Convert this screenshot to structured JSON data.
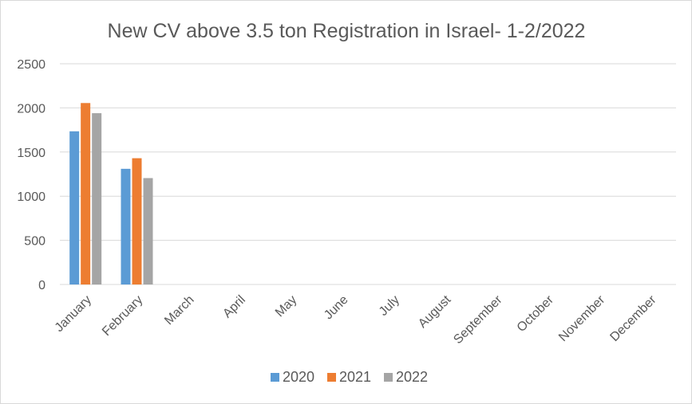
{
  "chart_data": {
    "type": "bar",
    "title": "New CV above 3.5 ton Registration in Israel- 1-2/2022",
    "xlabel": "",
    "ylabel": "",
    "categories": [
      "January",
      "February",
      "March",
      "April",
      "May",
      "June",
      "July",
      "August",
      "September",
      "October",
      "November",
      "December"
    ],
    "series": [
      {
        "name": "2020",
        "color": "#5b9bd5",
        "values": [
          1735,
          1310,
          null,
          null,
          null,
          null,
          null,
          null,
          null,
          null,
          null,
          null
        ]
      },
      {
        "name": "2021",
        "color": "#ed7d31",
        "values": [
          2055,
          1430,
          null,
          null,
          null,
          null,
          null,
          null,
          null,
          null,
          null,
          null
        ]
      },
      {
        "name": "2022",
        "color": "#a5a5a5",
        "values": [
          1940,
          1205,
          null,
          null,
          null,
          null,
          null,
          null,
          null,
          null,
          null,
          null
        ]
      }
    ],
    "ylim": [
      0,
      2500
    ],
    "yticks": [
      0,
      500,
      1000,
      1500,
      2000,
      2500
    ],
    "grid": true,
    "gridline_color": "#d9d9d9",
    "legend_position": "bottom"
  }
}
